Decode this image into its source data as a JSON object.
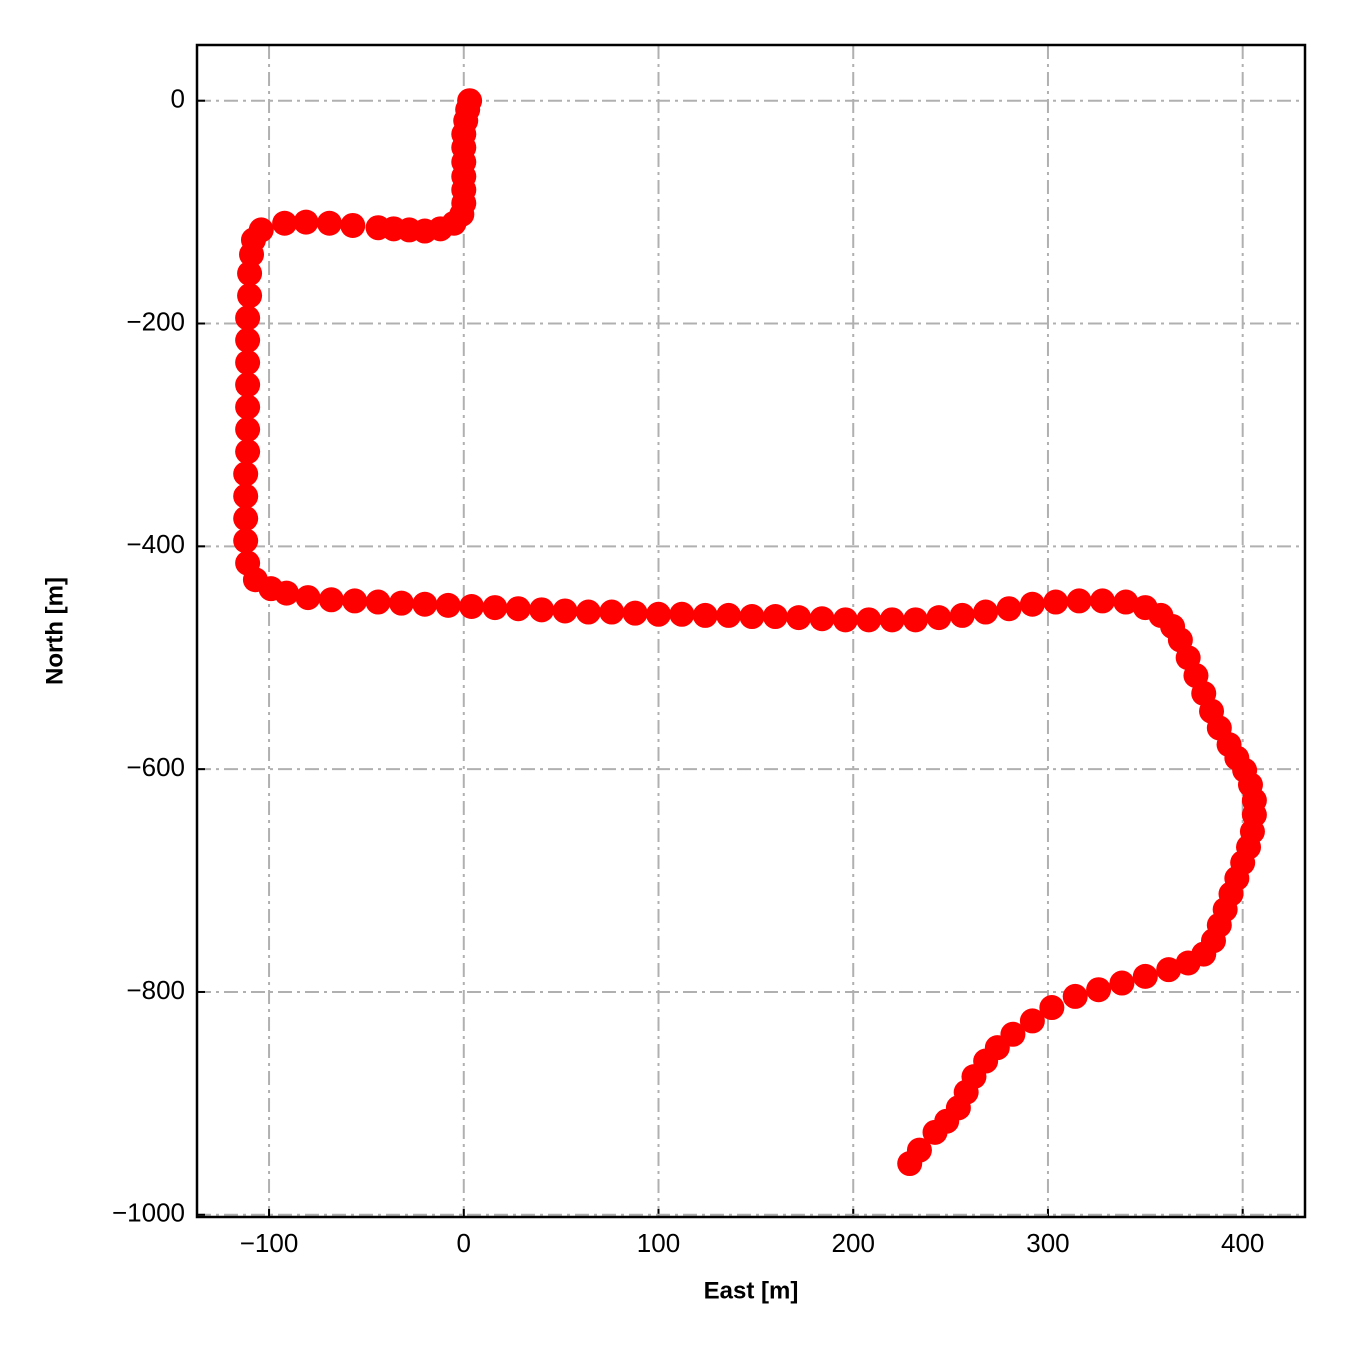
{
  "chart_data": {
    "type": "scatter",
    "xlabel": "East [m]",
    "ylabel": "North [m]",
    "color": "#ff0000",
    "grid": true,
    "xlim": [
      -137,
      432
    ],
    "ylim": [
      -1002,
      50
    ],
    "xticks": [
      {
        "value": -100,
        "label": "−100"
      },
      0,
      100,
      200,
      300,
      400
    ],
    "yticks": [
      {
        "value": -1000,
        "label": "−1000"
      },
      {
        "value": -800,
        "label": "−800"
      },
      {
        "value": -600,
        "label": "−600"
      },
      {
        "value": -400,
        "label": "−400"
      },
      {
        "value": -200,
        "label": "−200"
      },
      0
    ],
    "x": [
      3,
      2,
      1,
      0,
      0,
      0,
      0,
      0,
      0,
      -1,
      -5,
      -12,
      -20,
      -28,
      -36,
      -44,
      -57,
      -69,
      -81,
      -92,
      -104,
      -108,
      -109,
      -110,
      -110,
      -111,
      -111,
      -111,
      -111,
      -111,
      -111,
      -111,
      -112,
      -112,
      -112,
      -112,
      -111,
      -107,
      -99,
      -91,
      -80,
      -68,
      -56,
      -44,
      -32,
      -20,
      -8,
      4,
      16,
      28,
      40,
      52,
      64,
      76,
      88,
      100,
      112,
      124,
      136,
      148,
      160,
      172,
      184,
      196,
      208,
      220,
      232,
      244,
      256,
      268,
      280,
      292,
      304,
      316,
      328,
      340,
      350,
      358,
      364,
      368,
      372,
      376,
      380,
      384,
      388,
      393,
      397,
      401,
      404,
      406,
      406,
      405,
      403,
      400,
      397,
      394,
      391,
      388,
      385,
      380,
      372,
      362,
      350,
      338,
      326,
      314,
      302,
      292,
      282,
      274,
      268,
      262,
      258,
      254,
      248,
      242,
      234,
      229
    ],
    "values": [
      0,
      -8,
      -18,
      -30,
      -42,
      -55,
      -68,
      -80,
      -92,
      -102,
      -110,
      -115,
      -117,
      -116,
      -115,
      -114,
      -112,
      -110,
      -109,
      -110,
      -116,
      -125,
      -138,
      -155,
      -175,
      -195,
      -215,
      -235,
      -255,
      -275,
      -295,
      -315,
      -335,
      -355,
      -375,
      -395,
      -415,
      -430,
      -438,
      -442,
      -446,
      -448,
      -449,
      -450,
      -451,
      -452,
      -453,
      -454,
      -455,
      -456,
      -457,
      -458,
      -459,
      -459,
      -460,
      -461,
      -461,
      -462,
      -462,
      -463,
      -463,
      -464,
      -465,
      -466,
      -466,
      -466,
      -466,
      -464,
      -462,
      -459,
      -456,
      -452,
      -450,
      -449,
      -449,
      -450,
      -455,
      -462,
      -472,
      -484,
      -500,
      -516,
      -532,
      -548,
      -563,
      -578,
      -590,
      -601,
      -614,
      -628,
      -641,
      -656,
      -670,
      -684,
      -698,
      -712,
      -726,
      -740,
      -754,
      -766,
      -774,
      -780,
      -786,
      -792,
      -798,
      -804,
      -814,
      -826,
      -838,
      -850,
      -862,
      -876,
      -890,
      -904,
      -916,
      -926,
      -942,
      -954
    ]
  }
}
